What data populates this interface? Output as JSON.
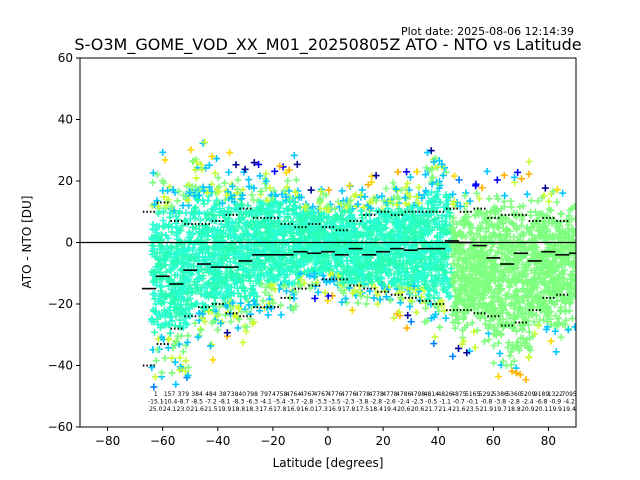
{
  "chart_data": {
    "type": "scatter",
    "title": "S-O3M_GOME_VOD_XX_M01_20250805Z ATO - NTO vs Latitude",
    "plot_date": "Plot date: 2025-08-06 12:14:39",
    "xlabel": "Latitude [degrees]",
    "ylabel": "ATO - NTO [DU]",
    "xlim": [
      -90,
      90
    ],
    "ylim": [
      -60,
      60
    ],
    "xticks": [
      -80,
      -60,
      -40,
      -20,
      0,
      20,
      40,
      60,
      80
    ],
    "yticks": [
      -60,
      -40,
      -20,
      0,
      20,
      40,
      60
    ],
    "xtick_labels": [
      "−80",
      "−60",
      "−40",
      "−20",
      "0",
      "20",
      "40",
      "60",
      "80"
    ],
    "ytick_labels": [
      "−60",
      "−40",
      "−20",
      "0",
      "20",
      "40",
      "60"
    ],
    "zero_line": 0,
    "grid": false,
    "colors": {
      "palette": [
        "#00008f",
        "#0000ff",
        "#0080ff",
        "#00c8ff",
        "#2affd4",
        "#28ffb4",
        "#7fff7f",
        "#c8ff37",
        "#ffd700",
        "#ffb000"
      ],
      "mean": "#000000",
      "sigma": "#000000"
    },
    "scatter_bands": [
      {
        "lat": [
          -64,
          -50
        ],
        "lower": -55,
        "upper": 35
      },
      {
        "lat": [
          -50,
          -40
        ],
        "lower": -45,
        "upper": 38
      },
      {
        "lat": [
          -40,
          -25
        ],
        "lower": -38,
        "upper": 32
      },
      {
        "lat": [
          -25,
          -10
        ],
        "lower": -30,
        "upper": 30
      },
      {
        "lat": [
          -10,
          5
        ],
        "lower": -22,
        "upper": 22
      },
      {
        "lat": [
          5,
          20
        ],
        "lower": -28,
        "upper": 25
      },
      {
        "lat": [
          20,
          35
        ],
        "lower": -30,
        "upper": 28
      },
      {
        "lat": [
          35,
          45
        ],
        "lower": -40,
        "upper": 38
      },
      {
        "lat": [
          45,
          60
        ],
        "lower": -42,
        "upper": 25
      },
      {
        "lat": [
          60,
          75
        ],
        "lower": -52,
        "upper": 30
      },
      {
        "lat": [
          75,
          90
        ],
        "lower": -40,
        "upper": 25
      }
    ],
    "mean_series": {
      "name": "mean",
      "lat": [
        -65,
        -60,
        -55,
        -50,
        -45,
        -40,
        -35,
        -30,
        -25,
        -20,
        -15,
        -10,
        -5,
        0,
        5,
        10,
        15,
        20,
        25,
        30,
        35,
        40,
        45,
        50,
        55,
        60,
        65,
        70,
        75,
        80,
        85,
        90
      ],
      "values": [
        -15,
        -11,
        -13.5,
        -9,
        -7,
        -8,
        -8,
        -6,
        -4,
        -4,
        -4,
        -3,
        -3.5,
        -3,
        -4,
        -2,
        -4,
        -3,
        -2,
        -2.5,
        -2,
        -2,
        0.5,
        0,
        -1,
        -5,
        -7,
        -3.5,
        -6,
        -3,
        -4,
        -3.5
      ]
    },
    "sigma_plus_series": {
      "name": "mean + sigma",
      "lat": [
        -65,
        -60,
        -55,
        -50,
        -45,
        -40,
        -35,
        -30,
        -25,
        -20,
        -15,
        -10,
        -5,
        0,
        5,
        10,
        15,
        20,
        25,
        30,
        35,
        40,
        45,
        50,
        55,
        60,
        65,
        70,
        75,
        80,
        85
      ],
      "values": [
        10,
        13,
        7,
        6,
        6,
        7,
        9,
        11,
        8,
        8,
        6,
        5,
        6,
        5,
        4,
        7,
        9,
        10,
        9,
        10,
        10,
        10,
        11,
        10,
        11,
        8,
        9,
        9,
        7,
        8,
        7
      ]
    },
    "sigma_minus_series": {
      "name": "mean - sigma",
      "lat": [
        -65,
        -60,
        -55,
        -50,
        -45,
        -40,
        -35,
        -30,
        -25,
        -20,
        -15,
        -10,
        -5,
        0,
        5,
        10,
        15,
        20,
        25,
        30,
        35,
        40,
        45,
        50,
        55,
        60,
        65,
        70,
        75,
        80,
        85
      ],
      "values": [
        -40,
        -33,
        -28,
        -24,
        -21,
        -20,
        -23,
        -24,
        -21,
        -21,
        -18,
        -15,
        -14,
        -12,
        -12,
        -14,
        -15,
        -16,
        -17,
        -18,
        -19,
        -20,
        -22,
        -22,
        -23,
        -24,
        -27,
        -26,
        -22,
        -18,
        -17
      ]
    },
    "bin_stats": [
      {
        "lat": -62.5,
        "lines": [
          "1",
          "-15.1",
          "25.0"
        ]
      },
      {
        "lat": -57.5,
        "lines": [
          "157",
          "-10.4",
          "24.1"
        ]
      },
      {
        "lat": -52.5,
        "lines": [
          "379",
          "-8.7",
          "23.0"
        ]
      },
      {
        "lat": -47.5,
        "lines": [
          "384",
          "-8.5",
          "21.6"
        ]
      },
      {
        "lat": -42.5,
        "lines": [
          "484",
          "-7.2",
          "21.5"
        ]
      },
      {
        "lat": -37.5,
        "lines": [
          "387",
          "-8.1",
          "19.9"
        ]
      },
      {
        "lat": -32.5,
        "lines": [
          "3840",
          "-8.3",
          "18.8"
        ]
      },
      {
        "lat": -27.5,
        "lines": [
          "798",
          "-6.3",
          "18.3"
        ]
      },
      {
        "lat": -22.5,
        "lines": [
          "797",
          "-4.1",
          "17.6"
        ]
      },
      {
        "lat": -17.5,
        "lines": [
          "4758",
          "-5.4",
          "17.8"
        ]
      },
      {
        "lat": -12.5,
        "lines": [
          "4764",
          "-3.7",
          "16.9"
        ]
      },
      {
        "lat": -7.5,
        "lines": [
          "4767",
          "-2.8",
          "16.0"
        ]
      },
      {
        "lat": -2.5,
        "lines": [
          "4767",
          "-3.3",
          "17.3"
        ]
      },
      {
        "lat": 2.5,
        "lines": [
          "4776",
          "-3.5",
          "16.9"
        ]
      },
      {
        "lat": 7.5,
        "lines": [
          "4776",
          "-2.3",
          "17.8"
        ]
      },
      {
        "lat": 12.5,
        "lines": [
          "4778",
          "-3.8",
          "17.5"
        ]
      },
      {
        "lat": 17.5,
        "lines": [
          "4778",
          "-2.8",
          "18.4"
        ]
      },
      {
        "lat": 22.5,
        "lines": [
          "4778",
          "-2.6",
          "19.4"
        ]
      },
      {
        "lat": 27.5,
        "lines": [
          "4786",
          "-2.4",
          "20.6"
        ]
      },
      {
        "lat": 32.5,
        "lines": [
          "4798",
          "-2.3",
          "20.6"
        ]
      },
      {
        "lat": 37.5,
        "lines": [
          "4814",
          "-0.5",
          "21.7"
        ]
      },
      {
        "lat": 42.5,
        "lines": [
          "4826",
          "-1.1",
          "21.4"
        ]
      },
      {
        "lat": 47.5,
        "lines": [
          "4875",
          "-0.7",
          "21.6"
        ]
      },
      {
        "lat": 52.5,
        "lines": [
          "5165",
          "-0.1",
          "23.5"
        ]
      },
      {
        "lat": 57.5,
        "lines": [
          "5292",
          "-0.8",
          "21.9"
        ]
      },
      {
        "lat": 62.5,
        "lines": [
          "5386",
          "-3.8",
          "19.7"
        ]
      },
      {
        "lat": 67.5,
        "lines": [
          "5360",
          "-2.8",
          "18.8"
        ]
      },
      {
        "lat": 72.5,
        "lines": [
          "5209",
          "-2.4",
          "20.9"
        ]
      },
      {
        "lat": 77.5,
        "lines": [
          "9189",
          "-6.8",
          "20.1"
        ]
      },
      {
        "lat": 82.5,
        "lines": [
          "1322",
          "-0.9",
          "19.9"
        ]
      },
      {
        "lat": 87.5,
        "lines": [
          "7095",
          "-4.2",
          "19.4"
        ]
      }
    ]
  }
}
